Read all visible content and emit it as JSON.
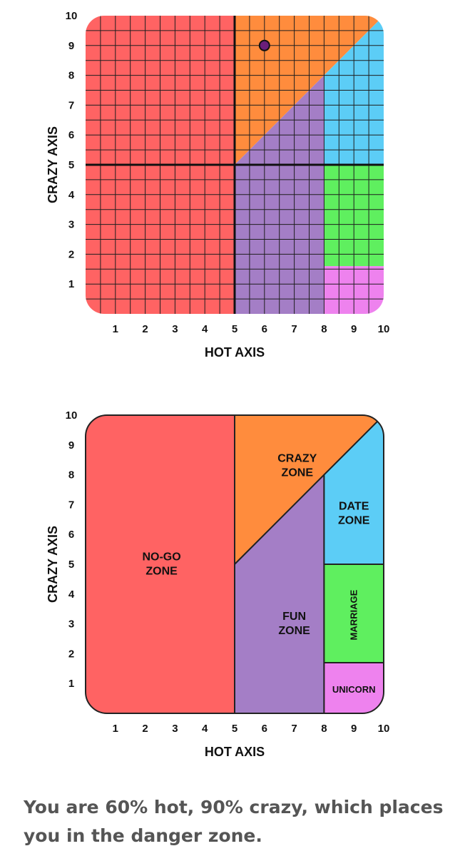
{
  "chart_data": [
    {
      "type": "scatter",
      "xlabel": "HOT AXIS",
      "ylabel": "CRAZY AXIS",
      "xlim": [
        0,
        10
      ],
      "ylim": [
        0,
        10
      ],
      "x_ticks": [
        "1",
        "2",
        "3",
        "4",
        "5",
        "6",
        "7",
        "8",
        "9",
        "10"
      ],
      "y_ticks": [
        "1",
        "2",
        "3",
        "4",
        "5",
        "6",
        "7",
        "8",
        "9",
        "10"
      ],
      "grid": true,
      "grid_step": 0.5,
      "points": [
        {
          "x": 6,
          "y": 9
        }
      ],
      "point_color": "#6a1e7a",
      "zones": [
        {
          "name": "no-go",
          "color": "#ff6363"
        },
        {
          "name": "crazy",
          "color": "#ff8c3d"
        },
        {
          "name": "fun",
          "color": "#a47ec6"
        },
        {
          "name": "date",
          "color": "#5ccdf6"
        },
        {
          "name": "marriage",
          "color": "#5fef5f"
        },
        {
          "name": "unicorn",
          "color": "#ee82ee"
        }
      ]
    },
    {
      "type": "zone-map",
      "xlabel": "HOT AXIS",
      "ylabel": "CRAZY AXIS",
      "xlim": [
        0,
        10
      ],
      "ylim": [
        0,
        10
      ],
      "x_ticks": [
        "1",
        "2",
        "3",
        "4",
        "5",
        "6",
        "7",
        "8",
        "9",
        "10"
      ],
      "y_ticks": [
        "1",
        "2",
        "3",
        "4",
        "5",
        "6",
        "7",
        "8",
        "9",
        "10"
      ],
      "grid": false,
      "zones": [
        {
          "name": "no-go",
          "label_lines": [
            "NO-GO",
            "ZONE"
          ],
          "color": "#ff6363"
        },
        {
          "name": "crazy",
          "label_lines": [
            "CRAZY",
            "ZONE"
          ],
          "color": "#ff8c3d"
        },
        {
          "name": "fun",
          "label_lines": [
            "FUN",
            "ZONE"
          ],
          "color": "#a47ec6"
        },
        {
          "name": "date",
          "label_lines": [
            "DATE",
            "ZONE"
          ],
          "color": "#5ccdf6"
        },
        {
          "name": "marriage",
          "label_lines": [
            "MARRIAGE"
          ],
          "color": "#5fef5f"
        },
        {
          "name": "unicorn",
          "label_lines": [
            "UNICORN"
          ],
          "color": "#ee82ee"
        }
      ]
    }
  ],
  "result": {
    "line1": "You are 60% hot, 90% crazy, which places",
    "line2": "you in the danger zone."
  }
}
